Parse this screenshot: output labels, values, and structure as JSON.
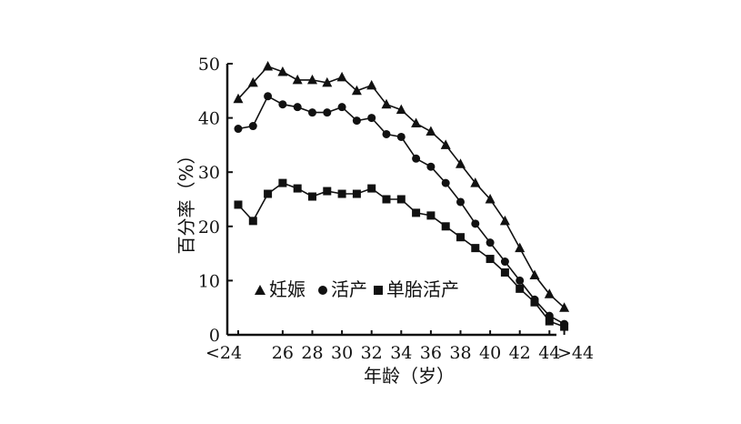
{
  "chart_data": {
    "type": "line",
    "xlabel": "年龄（岁）",
    "ylabel": "百分率（%）",
    "x": [
      "<24",
      "24",
      "25",
      "26",
      "27",
      "28",
      "29",
      "30",
      "31",
      "32",
      "33",
      "34",
      "35",
      "36",
      "37",
      "38",
      "39",
      "40",
      "41",
      "42",
      "43",
      "44",
      ">44"
    ],
    "x_tick_labels": [
      "<24",
      "26",
      "28",
      "30",
      "32",
      "34",
      "36",
      "38",
      "40",
      "42",
      "44",
      ">44"
    ],
    "y_ticks": [
      "0",
      "10",
      "20",
      "30",
      "40",
      "50"
    ],
    "ylim": [
      0,
      50
    ],
    "grid": false,
    "legend_position": "bottom-left",
    "series": [
      {
        "name": "妊娠",
        "marker": "triangle",
        "values": [
          43.5,
          46.5,
          49.5,
          48.5,
          47,
          47,
          46.5,
          47.5,
          45,
          46,
          42.5,
          41.5,
          39,
          37.5,
          35,
          31.5,
          28,
          25,
          21,
          16,
          11,
          7.5,
          5
        ]
      },
      {
        "name": "活产",
        "marker": "circle",
        "values": [
          38,
          38.5,
          44,
          42.5,
          42,
          41,
          41,
          42,
          39.5,
          40,
          37,
          36.5,
          32.5,
          31,
          28,
          24.5,
          20.5,
          17,
          13.5,
          10,
          6.5,
          3.5,
          2
        ]
      },
      {
        "name": "单胎活产",
        "marker": "square",
        "values": [
          24,
          21,
          26,
          28,
          27,
          25.5,
          26.5,
          26,
          26,
          27,
          25,
          25,
          22.5,
          22,
          20,
          18,
          16,
          14,
          11.5,
          8.5,
          6,
          2.5,
          1.5
        ]
      }
    ]
  }
}
